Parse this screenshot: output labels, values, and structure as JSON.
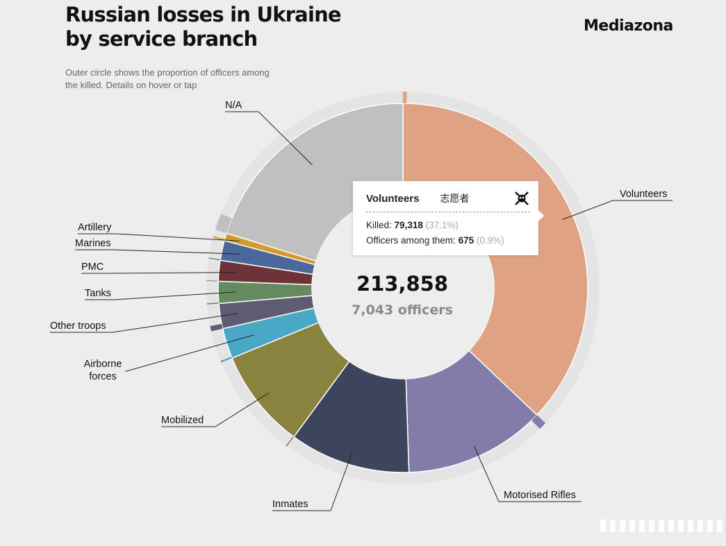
{
  "header": {
    "title_line1": "Russian losses in Ukraine",
    "title_line2": "by service branch",
    "brand": "Mediazona",
    "subtitle": "Outer circle shows the proportion of officers among the killed. Details on hover or tap"
  },
  "center": {
    "total": "213,858",
    "officers": "7,043 officers"
  },
  "tooltip": {
    "name": "Volunteers",
    "alt_text": "志愿者",
    "icon": "wagner-skull-icon",
    "killed_label": "Killed:",
    "killed_value": "79,318",
    "killed_pct": "(37.1%)",
    "officers_label": "Officers among them:",
    "officers_value": "675",
    "officers_pct": "(0.9%)"
  },
  "chart_data": {
    "type": "pie",
    "subtype": "donut-with-outer-ring",
    "total_killed": 213858,
    "total_officers": 7043,
    "order": "clockwise from top",
    "slices": [
      {
        "label": "Volunteers",
        "killed": 79318,
        "officers": 675,
        "color": "#dfa384"
      },
      {
        "label": "Motorised Rifles",
        "killed": 26500,
        "officers": 1400,
        "color": "#837cab"
      },
      {
        "label": "Inmates",
        "killed": 22600,
        "officers": 10,
        "color": "#3d455c"
      },
      {
        "label": "Mobilized",
        "killed": 18700,
        "officers": 190,
        "color": "#8a8340"
      },
      {
        "label": "Airborne forces",
        "killed": 5700,
        "officers": 300,
        "color": "#4aa8c7"
      },
      {
        "label": "Other troops",
        "killed": 4700,
        "officers": 900,
        "color": "#5f5b72"
      },
      {
        "label": "Tanks",
        "killed": 4100,
        "officers": 190,
        "color": "#668a5f"
      },
      {
        "label": "PMC",
        "killed": 3900,
        "officers": 70,
        "color": "#6e3337"
      },
      {
        "label": "Marines",
        "killed": 3700,
        "officers": 150,
        "color": "#4a6899"
      },
      {
        "label": "Artillery",
        "killed": 1440,
        "officers": 260,
        "color": "#d49a2b"
      },
      {
        "label": "N/A",
        "killed": 43200,
        "officers": 2898,
        "color": "#c0c0c0"
      }
    ]
  }
}
